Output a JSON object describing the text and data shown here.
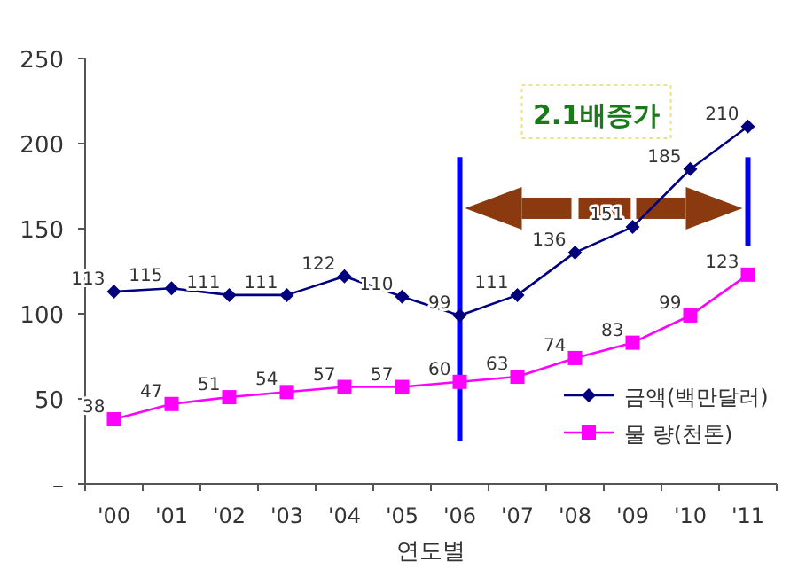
{
  "chart_data": {
    "type": "line",
    "xlabel": "연도별",
    "categories": [
      "'00",
      "'01",
      "'02",
      "'03",
      "'04",
      "'05",
      "'06",
      "'07",
      "'08",
      "'09",
      "'10",
      "'11"
    ],
    "series": [
      {
        "name": "금액(백만달러)",
        "color": "#00007f",
        "marker": "diamond",
        "values": [
          113,
          115,
          111,
          111,
          122,
          110,
          99,
          111,
          136,
          151,
          185,
          210
        ]
      },
      {
        "name": "물 량(천톤)",
        "color": "#ff00ff",
        "marker": "square",
        "values": [
          38,
          47,
          51,
          54,
          57,
          57,
          60,
          63,
          74,
          83,
          99,
          123
        ]
      }
    ],
    "ylim": [
      0,
      250
    ],
    "yticks": [
      {
        "value": 0,
        "label": "–"
      },
      50,
      100,
      150,
      200,
      250
    ],
    "data_labels": true,
    "legend": "bottom right",
    "grid": false,
    "ref_lines": [
      {
        "axis": "x",
        "value": "'06",
        "color": "#0000ff"
      },
      {
        "axis": "x",
        "value": "'11",
        "color": "#0000ff"
      }
    ],
    "annotations": [
      "2.1배증가"
    ]
  }
}
